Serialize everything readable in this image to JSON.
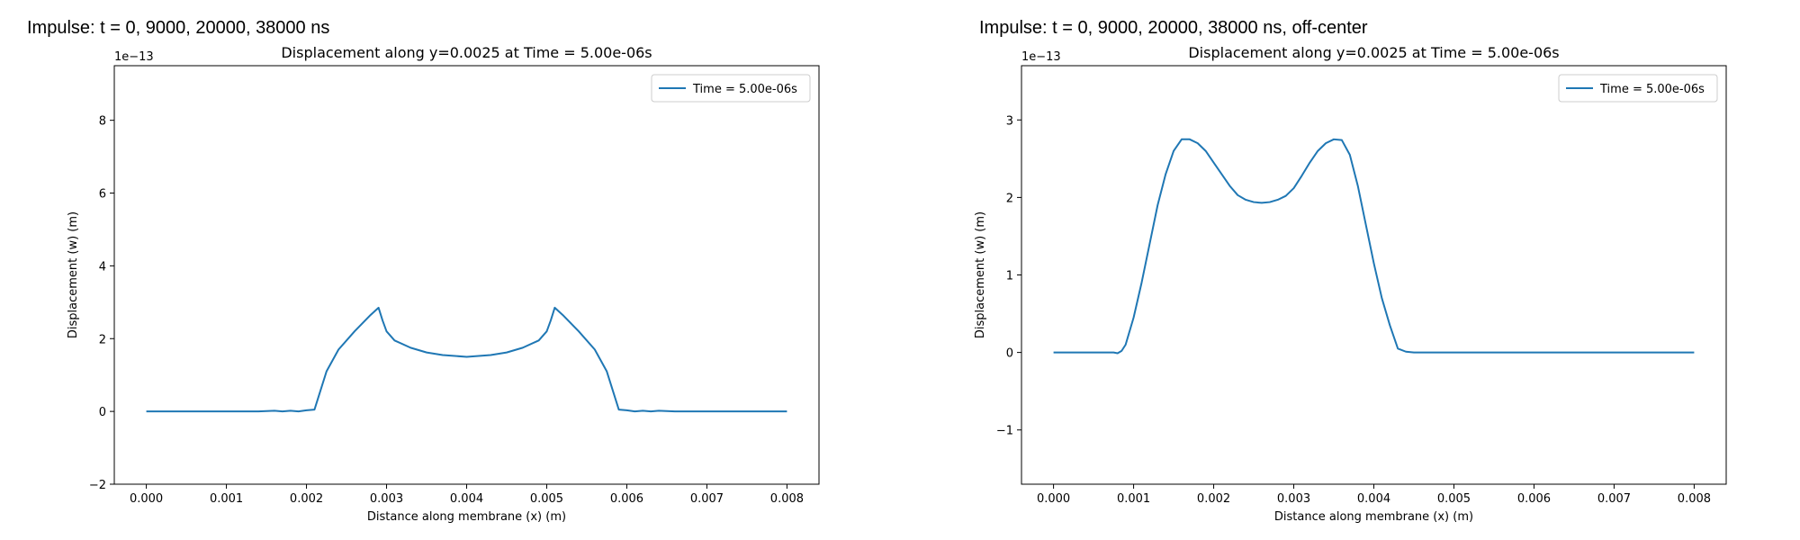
{
  "chart_data": [
    {
      "type": "line",
      "panel_heading": "Impulse: t = 0, 9000, 20000, 38000 ns",
      "title": "Displacement along y=0.0025 at Time = 5.00e-06s",
      "xlabel": "Distance along membrane (x) (m)",
      "ylabel": "Displacement (w) (m)",
      "y_offset_label": "1e−13",
      "xlim": [
        -0.0004,
        0.0084
      ],
      "ylim": [
        -2,
        9.5
      ],
      "xticks": [
        "0.000",
        "0.001",
        "0.002",
        "0.003",
        "0.004",
        "0.005",
        "0.006",
        "0.007",
        "0.008"
      ],
      "yticks": [
        "−2",
        "0",
        "2",
        "4",
        "6",
        "8"
      ],
      "grid": false,
      "legend": "upper right",
      "color": "#1f77b4",
      "series": [
        {
          "name": "Time = 5.00e-06s",
          "points": [
            [
              0.0,
              0.0
            ],
            [
              0.0002,
              0.0
            ],
            [
              0.0004,
              0.0
            ],
            [
              0.0006,
              0.0
            ],
            [
              0.0008,
              0.0
            ],
            [
              0.001,
              0.0
            ],
            [
              0.0012,
              0.0
            ],
            [
              0.0014,
              0.0
            ],
            [
              0.0016,
              0.02
            ],
            [
              0.0017,
              0.0
            ],
            [
              0.0018,
              0.02
            ],
            [
              0.0019,
              0.0
            ],
            [
              0.002,
              0.03
            ],
            [
              0.0021,
              0.05
            ],
            [
              0.00225,
              1.1
            ],
            [
              0.0024,
              1.7
            ],
            [
              0.0026,
              2.2
            ],
            [
              0.0028,
              2.65
            ],
            [
              0.0029,
              2.85
            ],
            [
              0.00295,
              2.5
            ],
            [
              0.003,
              2.2
            ],
            [
              0.0031,
              1.95
            ],
            [
              0.0033,
              1.75
            ],
            [
              0.0035,
              1.62
            ],
            [
              0.0037,
              1.55
            ],
            [
              0.004,
              1.5
            ],
            [
              0.0043,
              1.55
            ],
            [
              0.0045,
              1.62
            ],
            [
              0.0047,
              1.75
            ],
            [
              0.0049,
              1.95
            ],
            [
              0.005,
              2.2
            ],
            [
              0.00505,
              2.5
            ],
            [
              0.0051,
              2.85
            ],
            [
              0.0052,
              2.65
            ],
            [
              0.0054,
              2.2
            ],
            [
              0.0056,
              1.7
            ],
            [
              0.00575,
              1.1
            ],
            [
              0.0059,
              0.05
            ],
            [
              0.006,
              0.03
            ],
            [
              0.0061,
              0.0
            ],
            [
              0.0062,
              0.02
            ],
            [
              0.0063,
              0.0
            ],
            [
              0.0064,
              0.02
            ],
            [
              0.0066,
              0.0
            ],
            [
              0.0068,
              0.0
            ],
            [
              0.007,
              0.0
            ],
            [
              0.0072,
              0.0
            ],
            [
              0.0074,
              0.0
            ],
            [
              0.0076,
              0.0
            ],
            [
              0.0078,
              0.0
            ],
            [
              0.008,
              0.0
            ]
          ]
        }
      ]
    },
    {
      "type": "line",
      "panel_heading": "Impulse: t = 0, 9000, 20000, 38000 ns, off-center",
      "title": "Displacement along y=0.0025 at Time = 5.00e-06s",
      "xlabel": "Distance along membrane (x) (m)",
      "ylabel": "Displacement (w) (m)",
      "y_offset_label": "1e−13",
      "xlim": [
        -0.0004,
        0.0084
      ],
      "ylim": [
        -1.7,
        3.7
      ],
      "xticks": [
        "0.000",
        "0.001",
        "0.002",
        "0.003",
        "0.004",
        "0.005",
        "0.006",
        "0.007",
        "0.008"
      ],
      "yticks": [
        "−1",
        "0",
        "1",
        "2",
        "3"
      ],
      "grid": false,
      "legend": "upper right",
      "color": "#1f77b4",
      "series": [
        {
          "name": "Time = 5.00e-06s",
          "points": [
            [
              0.0,
              0.0
            ],
            [
              0.0002,
              0.0
            ],
            [
              0.0004,
              0.0
            ],
            [
              0.0006,
              0.0
            ],
            [
              0.00075,
              0.0
            ],
            [
              0.0008,
              -0.01
            ],
            [
              0.00085,
              0.02
            ],
            [
              0.0009,
              0.1
            ],
            [
              0.001,
              0.45
            ],
            [
              0.0011,
              0.9
            ],
            [
              0.0012,
              1.4
            ],
            [
              0.0013,
              1.9
            ],
            [
              0.0014,
              2.3
            ],
            [
              0.0015,
              2.6
            ],
            [
              0.0016,
              2.75
            ],
            [
              0.0017,
              2.75
            ],
            [
              0.0018,
              2.7
            ],
            [
              0.0019,
              2.6
            ],
            [
              0.002,
              2.45
            ],
            [
              0.0021,
              2.3
            ],
            [
              0.0022,
              2.15
            ],
            [
              0.0023,
              2.03
            ],
            [
              0.0024,
              1.97
            ],
            [
              0.0025,
              1.94
            ],
            [
              0.0026,
              1.93
            ],
            [
              0.0027,
              1.94
            ],
            [
              0.0028,
              1.97
            ],
            [
              0.0029,
              2.02
            ],
            [
              0.003,
              2.12
            ],
            [
              0.0031,
              2.28
            ],
            [
              0.0032,
              2.45
            ],
            [
              0.0033,
              2.6
            ],
            [
              0.0034,
              2.7
            ],
            [
              0.0035,
              2.75
            ],
            [
              0.0036,
              2.74
            ],
            [
              0.0037,
              2.55
            ],
            [
              0.0038,
              2.15
            ],
            [
              0.0039,
              1.65
            ],
            [
              0.004,
              1.15
            ],
            [
              0.0041,
              0.7
            ],
            [
              0.0042,
              0.35
            ],
            [
              0.0043,
              0.05
            ],
            [
              0.0044,
              0.01
            ],
            [
              0.0045,
              0.0
            ],
            [
              0.0047,
              0.0
            ],
            [
              0.005,
              0.0
            ],
            [
              0.0055,
              0.0
            ],
            [
              0.006,
              0.0
            ],
            [
              0.0065,
              0.0
            ],
            [
              0.007,
              0.0
            ],
            [
              0.0075,
              0.0
            ],
            [
              0.008,
              0.0
            ]
          ]
        }
      ]
    }
  ]
}
